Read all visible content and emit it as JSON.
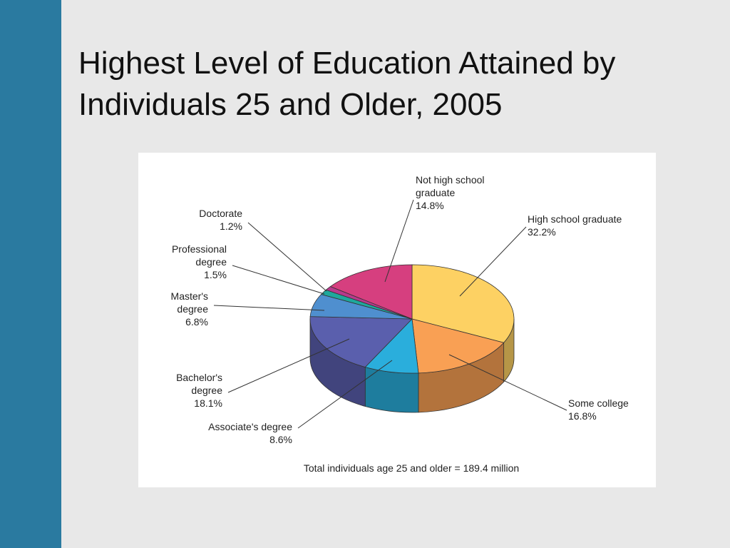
{
  "chart_data": {
    "type": "pie",
    "title": "Highest Level of Education Attained by Individuals 25 and Older, 2005",
    "categories": [
      "High school graduate",
      "Some college",
      "Associate's degree",
      "Bachelor's degree",
      "Master's degree",
      "Professional degree",
      "Doctorate",
      "Not high school graduate"
    ],
    "values": [
      32.2,
      16.8,
      8.6,
      18.1,
      6.8,
      1.5,
      1.2,
      14.8
    ],
    "value_labels": [
      "32.2%",
      "16.8%",
      "8.6%",
      "18.1%",
      "6.8%",
      "1.5%",
      "1.2%",
      "14.8%"
    ],
    "colors": [
      "#fdd163",
      "#f9a054",
      "#2aaedc",
      "#5a5fad",
      "#4f8fcf",
      "#1fa89c",
      "#b83a8c",
      "#d63f7f"
    ],
    "annotation": "Total individuals age 25 and older = 189.4 million"
  }
}
